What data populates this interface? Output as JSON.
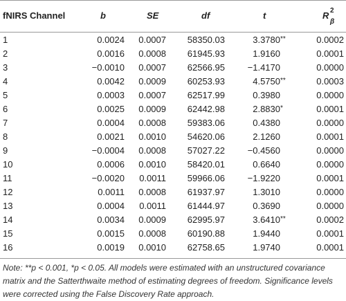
{
  "table": {
    "headers": {
      "channel": "fNIRS Channel",
      "b": "b",
      "se": "SE",
      "df": "df",
      "t": "t",
      "r2_base": "R",
      "r2_sup": "2",
      "r2_sub": "β"
    },
    "rows": [
      {
        "channel": "1",
        "b": "0.0024",
        "se": "0.0007",
        "df": "58350.03",
        "t": "3.3780",
        "sig": "**",
        "r2": "0.0002"
      },
      {
        "channel": "2",
        "b": "0.0016",
        "se": "0.0008",
        "df": "61945.93",
        "t": "1.9160",
        "sig": "",
        "r2": "0.0001"
      },
      {
        "channel": "3",
        "b": "−0.0010",
        "se": "0.0007",
        "df": "62566.95",
        "t": "−1.4170",
        "sig": "",
        "r2": "0.0000"
      },
      {
        "channel": "4",
        "b": "0.0042",
        "se": "0.0009",
        "df": "60253.93",
        "t": "4.5750",
        "sig": "**",
        "r2": "0.0003"
      },
      {
        "channel": "5",
        "b": "0.0003",
        "se": "0.0007",
        "df": "62517.99",
        "t": "0.3980",
        "sig": "",
        "r2": "0.0000"
      },
      {
        "channel": "6",
        "b": "0.0025",
        "se": "0.0009",
        "df": "62442.98",
        "t": "2.8830",
        "sig": "*",
        "r2": "0.0001"
      },
      {
        "channel": "7",
        "b": "0.0004",
        "se": "0.0008",
        "df": "59383.06",
        "t": "0.4380",
        "sig": "",
        "r2": "0.0000"
      },
      {
        "channel": "8",
        "b": "0.0021",
        "se": "0.0010",
        "df": "54620.06",
        "t": "2.1260",
        "sig": "",
        "r2": "0.0001"
      },
      {
        "channel": "9",
        "b": "−0.0004",
        "se": "0.0008",
        "df": "57027.22",
        "t": "−0.4560",
        "sig": "",
        "r2": "0.0000"
      },
      {
        "channel": "10",
        "b": "0.0006",
        "se": "0.0010",
        "df": "58420.01",
        "t": "0.6640",
        "sig": "",
        "r2": "0.0000"
      },
      {
        "channel": "11",
        "b": "−0.0020",
        "se": "0.0011",
        "df": "59966.06",
        "t": "−1.9220",
        "sig": "",
        "r2": "0.0001"
      },
      {
        "channel": "12",
        "b": "0.0011",
        "se": "0.0008",
        "df": "61937.97",
        "t": "1.3010",
        "sig": "",
        "r2": "0.0000"
      },
      {
        "channel": "13",
        "b": "0.0004",
        "se": "0.0011",
        "df": "61444.97",
        "t": "0.3690",
        "sig": "",
        "r2": "0.0000"
      },
      {
        "channel": "14",
        "b": "0.0034",
        "se": "0.0009",
        "df": "62995.97",
        "t": "3.6410",
        "sig": "**",
        "r2": "0.0002"
      },
      {
        "channel": "15",
        "b": "0.0015",
        "se": "0.0008",
        "df": "60190.88",
        "t": "1.9440",
        "sig": "",
        "r2": "0.0001"
      },
      {
        "channel": "16",
        "b": "0.0019",
        "se": "0.0010",
        "df": "62758.65",
        "t": "1.9740",
        "sig": "",
        "r2": "0.0001"
      }
    ]
  },
  "note": {
    "text": "Note: **p < 0.001, *p < 0.05. All models were estimated with an unstructured covariance matrix and the Satterthwaite method of estimating degrees of freedom. Significance levels were corrected using the False Discovery Rate approach."
  }
}
